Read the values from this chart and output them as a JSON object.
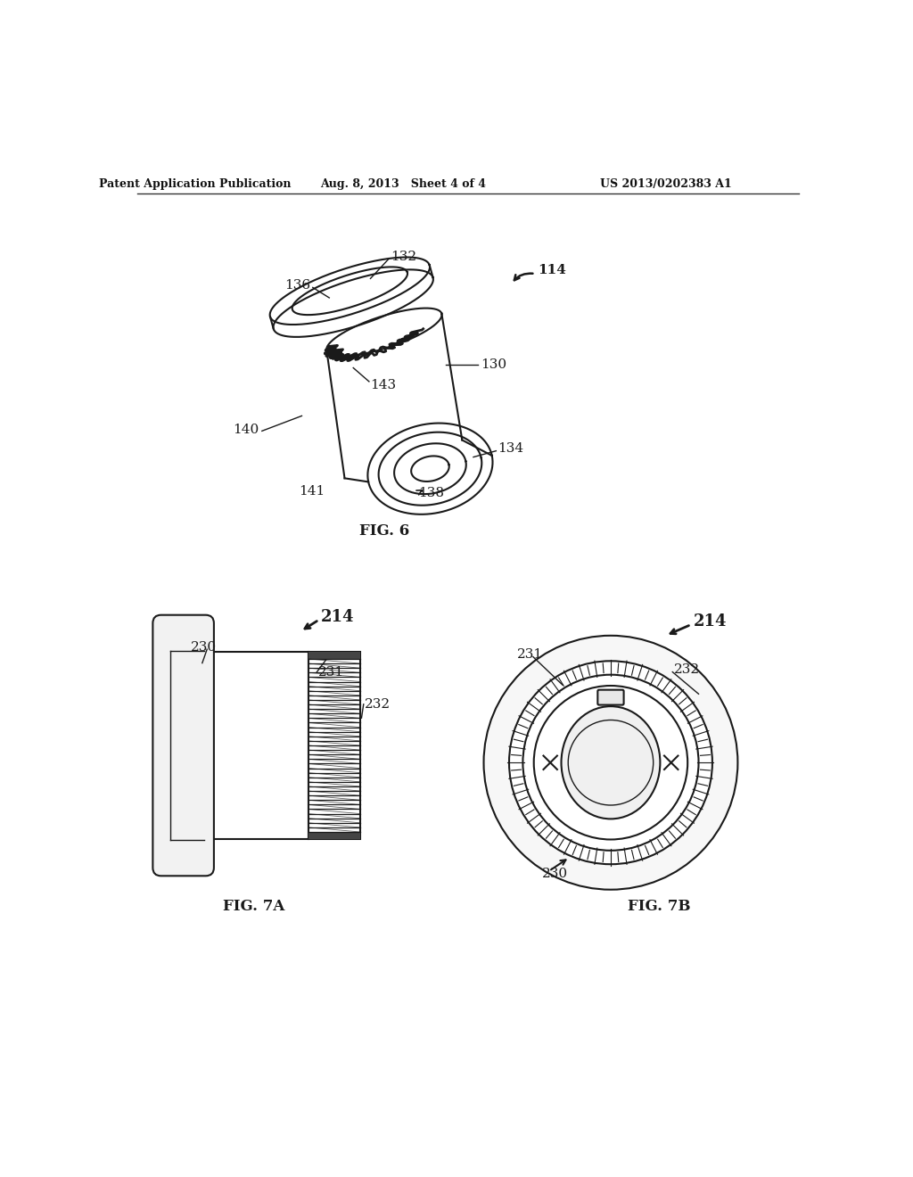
{
  "bg_color": "#ffffff",
  "header_left": "Patent Application Publication",
  "header_mid": "Aug. 8, 2013   Sheet 4 of 4",
  "header_right": "US 2013/0202383 A1",
  "fig6_label": "FIG. 6",
  "fig7a_label": "FIG. 7A",
  "fig7b_label": "FIG. 7B",
  "ref_114": "114",
  "ref_132": "132",
  "ref_136": "136",
  "ref_130": "130",
  "ref_143": "143",
  "ref_140": "140",
  "ref_134": "134",
  "ref_138": "138",
  "ref_141": "141",
  "ref_214a": "214",
  "ref_230a": "230",
  "ref_231a": "231",
  "ref_232a": "232",
  "ref_214b": "214",
  "ref_231b": "231",
  "ref_232b": "232",
  "ref_230b": "230"
}
